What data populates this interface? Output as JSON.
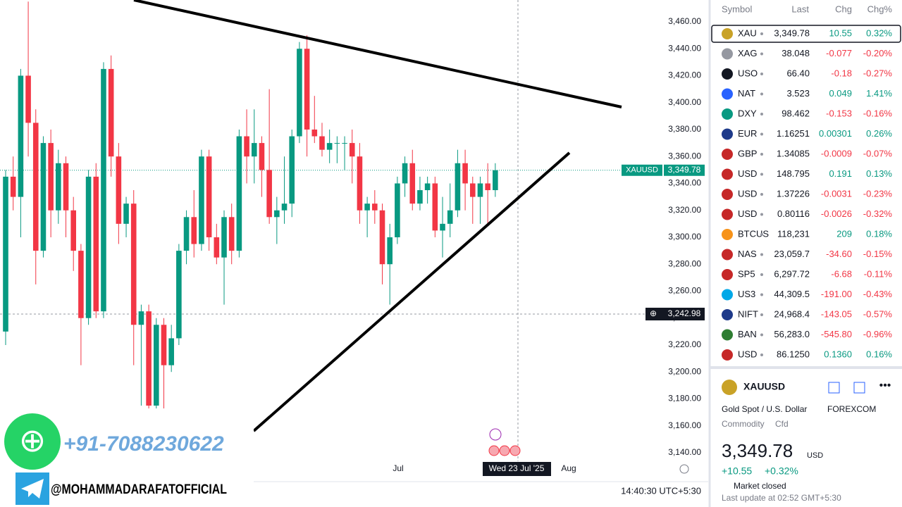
{
  "chart": {
    "ylim": [
      3133.7,
      3476.2
    ],
    "yticks": [
      {
        "value": 3460,
        "label": "3,460.00"
      },
      {
        "value": 3440,
        "label": "3,440.00"
      },
      {
        "value": 3420,
        "label": "3,420.00"
      },
      {
        "value": 3400,
        "label": "3,400.00"
      },
      {
        "value": 3380,
        "label": "3,380.00"
      },
      {
        "value": 3360,
        "label": "3,360.00"
      },
      {
        "value": 3340,
        "label": "3,340.00"
      },
      {
        "value": 3320,
        "label": "3,320.00"
      },
      {
        "value": 3300,
        "label": "3,300.00"
      },
      {
        "value": 3280,
        "label": "3,280.00"
      },
      {
        "value": 3260,
        "label": "3,260.00"
      },
      {
        "value": 3240,
        "label": "3,240.00"
      },
      {
        "value": 3220,
        "label": "3,220.00"
      },
      {
        "value": 3200,
        "label": "3,200.00"
      },
      {
        "value": 3180,
        "label": "3,180.00"
      },
      {
        "value": 3160,
        "label": "3,160.00"
      },
      {
        "value": 3140,
        "label": "3,140.00"
      }
    ],
    "candles": [
      {
        "o": 3230,
        "h": 3350,
        "l": 3220,
        "c": 3345
      },
      {
        "o": 3345,
        "h": 3360,
        "l": 3320,
        "c": 3330
      },
      {
        "o": 3330,
        "h": 3425,
        "l": 3300,
        "c": 3420
      },
      {
        "o": 3420,
        "h": 3475,
        "l": 3360,
        "c": 3385
      },
      {
        "o": 3385,
        "h": 3395,
        "l": 3265,
        "c": 3290
      },
      {
        "o": 3290,
        "h": 3375,
        "l": 3285,
        "c": 3370
      },
      {
        "o": 3370,
        "h": 3380,
        "l": 3300,
        "c": 3320
      },
      {
        "o": 3320,
        "h": 3365,
        "l": 3310,
        "c": 3355
      },
      {
        "o": 3355,
        "h": 3360,
        "l": 3300,
        "c": 3320
      },
      {
        "o": 3320,
        "h": 3330,
        "l": 3275,
        "c": 3290
      },
      {
        "o": 3290,
        "h": 3295,
        "l": 3205,
        "c": 3240
      },
      {
        "o": 3240,
        "h": 3350,
        "l": 3235,
        "c": 3345
      },
      {
        "o": 3345,
        "h": 3355,
        "l": 3240,
        "c": 3245
      },
      {
        "o": 3245,
        "h": 3430,
        "l": 3240,
        "c": 3425
      },
      {
        "o": 3425,
        "h": 3435,
        "l": 3345,
        "c": 3360
      },
      {
        "o": 3360,
        "h": 3370,
        "l": 3295,
        "c": 3310
      },
      {
        "o": 3310,
        "h": 3330,
        "l": 3300,
        "c": 3325
      },
      {
        "o": 3325,
        "h": 3335,
        "l": 3205,
        "c": 3235
      },
      {
        "o": 3235,
        "h": 3250,
        "l": 3175,
        "c": 3245
      },
      {
        "o": 3245,
        "h": 3250,
        "l": 3168,
        "c": 3175
      },
      {
        "o": 3175,
        "h": 3240,
        "l": 3170,
        "c": 3235
      },
      {
        "o": 3235,
        "h": 3240,
        "l": 3170,
        "c": 3205
      },
      {
        "o": 3205,
        "h": 3235,
        "l": 3200,
        "c": 3225
      },
      {
        "o": 3225,
        "h": 3295,
        "l": 3220,
        "c": 3290
      },
      {
        "o": 3290,
        "h": 3320,
        "l": 3280,
        "c": 3315
      },
      {
        "o": 3315,
        "h": 3335,
        "l": 3285,
        "c": 3295
      },
      {
        "o": 3295,
        "h": 3365,
        "l": 3290,
        "c": 3360
      },
      {
        "o": 3360,
        "h": 3365,
        "l": 3290,
        "c": 3300
      },
      {
        "o": 3300,
        "h": 3310,
        "l": 3280,
        "c": 3285
      },
      {
        "o": 3285,
        "h": 3320,
        "l": 3250,
        "c": 3315
      },
      {
        "o": 3315,
        "h": 3325,
        "l": 3280,
        "c": 3290
      },
      {
        "o": 3290,
        "h": 3380,
        "l": 3285,
        "c": 3375
      },
      {
        "o": 3375,
        "h": 3395,
        "l": 3340,
        "c": 3360
      },
      {
        "o": 3360,
        "h": 3395,
        "l": 3340,
        "c": 3370
      },
      {
        "o": 3370,
        "h": 3375,
        "l": 3330,
        "c": 3350
      },
      {
        "o": 3350,
        "h": 3410,
        "l": 3310,
        "c": 3315
      },
      {
        "o": 3315,
        "h": 3330,
        "l": 3295,
        "c": 3320
      },
      {
        "o": 3320,
        "h": 3360,
        "l": 3310,
        "c": 3325
      },
      {
        "o": 3325,
        "h": 3380,
        "l": 3315,
        "c": 3375
      },
      {
        "o": 3375,
        "h": 3445,
        "l": 3370,
        "c": 3440
      },
      {
        "o": 3440,
        "h": 3450,
        "l": 3360,
        "c": 3380
      },
      {
        "o": 3380,
        "h": 3405,
        "l": 3370,
        "c": 3375
      },
      {
        "o": 3375,
        "h": 3385,
        "l": 3360,
        "c": 3365
      },
      {
        "o": 3365,
        "h": 3380,
        "l": 3355,
        "c": 3370
      },
      {
        "o": 3370,
        "h": 3375,
        "l": 3355,
        "c": 3370
      },
      {
        "o": 3370,
        "h": 3375,
        "l": 3350,
        "c": 3370
      },
      {
        "o": 3370,
        "h": 3380,
        "l": 3340,
        "c": 3360
      },
      {
        "o": 3360,
        "h": 3370,
        "l": 3310,
        "c": 3320
      },
      {
        "o": 3320,
        "h": 3330,
        "l": 3300,
        "c": 3325
      },
      {
        "o": 3325,
        "h": 3335,
        "l": 3310,
        "c": 3320
      },
      {
        "o": 3320,
        "h": 3325,
        "l": 3265,
        "c": 3280
      },
      {
        "o": 3280,
        "h": 3310,
        "l": 3250,
        "c": 3300
      },
      {
        "o": 3300,
        "h": 3345,
        "l": 3295,
        "c": 3340
      },
      {
        "o": 3340,
        "h": 3360,
        "l": 3330,
        "c": 3355
      },
      {
        "o": 3355,
        "h": 3365,
        "l": 3320,
        "c": 3325
      },
      {
        "o": 3325,
        "h": 3345,
        "l": 3320,
        "c": 3335
      },
      {
        "o": 3335,
        "h": 3345,
        "l": 3325,
        "c": 3340
      },
      {
        "o": 3340,
        "h": 3345,
        "l": 3300,
        "c": 3305
      },
      {
        "o": 3305,
        "h": 3330,
        "l": 3285,
        "c": 3310
      },
      {
        "o": 3310,
        "h": 3340,
        "l": 3300,
        "c": 3320
      },
      {
        "o": 3320,
        "h": 3365,
        "l": 3315,
        "c": 3355
      },
      {
        "o": 3355,
        "h": 3365,
        "l": 3320,
        "c": 3340
      },
      {
        "o": 3340,
        "h": 3345,
        "l": 3310,
        "c": 3330
      },
      {
        "o": 3330,
        "h": 3345,
        "l": 3310,
        "c": 3340
      },
      {
        "o": 3340,
        "h": 3355,
        "l": 3310,
        "c": 3335
      },
      {
        "o": 3335,
        "h": 3355,
        "l": 3330,
        "c": 3349.78
      }
    ],
    "last_price": {
      "symbol": "XAUUSD",
      "value": 3349.78,
      "label": "3,349.78"
    },
    "crosshair": {
      "value": 3242.98,
      "label": "3,242.98"
    },
    "x_labels": [
      "Jul",
      "Aug"
    ],
    "cursor_date": "Wed 23 Jul '25",
    "clock": "14:40:30 UTC+5:30"
  },
  "watermark": {
    "phone": "+91-7088230622",
    "handle": "@MOHAMMADARAFATOFFICIAL"
  },
  "watchlist": {
    "header": [
      "Symbol",
      "Last",
      "Chg",
      "Chg%"
    ],
    "rows": [
      [
        "XAU",
        "3,349.78",
        "10.55",
        "0.32%"
      ],
      [
        "XAG",
        "38.048",
        "-0.077",
        "-0.20%"
      ],
      [
        "USO",
        "66.40",
        "-0.18",
        "-0.27%"
      ],
      [
        "NAT",
        "3.523",
        "0.049",
        "1.41%"
      ],
      [
        "DXY",
        "98.462",
        "-0.153",
        "-0.16%"
      ],
      [
        "EUR",
        "1.16251",
        "0.00301",
        "0.26%"
      ],
      [
        "GBP",
        "1.34085",
        "-0.0009",
        "-0.07%"
      ],
      [
        "USD",
        "148.795",
        "0.191",
        "0.13%"
      ],
      [
        "USD",
        "1.37226",
        "-0.0031",
        "-0.23%"
      ],
      [
        "USD",
        "0.80116",
        "-0.0026",
        "-0.32%"
      ],
      [
        "BTCUS",
        "118,231",
        "209",
        "0.18%"
      ],
      [
        "NAS",
        "23,059.7",
        "-34.60",
        "-0.15%"
      ],
      [
        "SP5",
        "6,297.72",
        "-6.68",
        "-0.11%"
      ],
      [
        "US3",
        "44,309.5",
        "-191.00",
        "-0.43%"
      ],
      [
        "NIFT",
        "24,968.4",
        "-143.05",
        "-0.57%"
      ],
      [
        "BAN",
        "56,283.0",
        "-545.80",
        "-0.96%"
      ],
      [
        "USD",
        "86.1250",
        "0.1360",
        "0.16%"
      ]
    ]
  },
  "details": {
    "symbol": "XAUUSD",
    "name": "Gold Spot / U.S. Dollar",
    "exchange": "FOREXCOM",
    "category": "Commodity",
    "kind": "Cfd",
    "price": "3,349.78",
    "currency": "USD",
    "change": "+10.55",
    "change_pct": "+0.32%",
    "status": "Market closed",
    "updated": "Last update at 02:52 GMT+5:30"
  }
}
